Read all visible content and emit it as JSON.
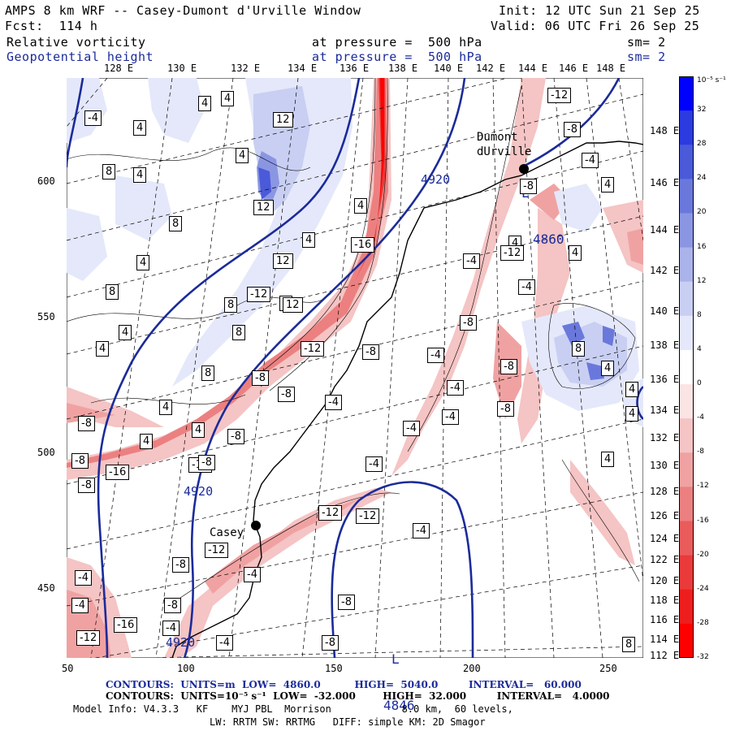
{
  "header": {
    "title": "AMPS 8 km WRF -- Casey-Dumont d'Urville Window",
    "init": "Init: 12 UTC Sun 21 Sep 25",
    "forecast": "Fcst:  114 h",
    "valid": "Valid: 06 UTC Fri 26 Sep 25",
    "field1": "Relative vorticity",
    "field1_level": "at pressure =  500 hPa",
    "field1_sm": "sm= 2",
    "field2": "Geopotential height",
    "field2_level": "at pressure =  500 hPa",
    "field2_sm": "sm= 2"
  },
  "lon_labels": [
    "128 E",
    "130 E",
    "132 E",
    "134 E",
    "136 E",
    "138 E",
    "140 E",
    "142 E",
    "144 E",
    "146 E",
    "148 E"
  ],
  "lat_labels": [
    "148 E",
    "146 E",
    "144 E",
    "142 E",
    "140 E",
    "138 E",
    "136 E",
    "134 E",
    "132 E",
    "130 E",
    "128 E",
    "126 E",
    "124 E",
    "122 E",
    "120 E",
    "118 E",
    "116 E",
    "114 E",
    "112 E"
  ],
  "y_axis": [
    "600",
    "550",
    "500",
    "450"
  ],
  "x_axis": [
    "50",
    "100",
    "150",
    "200",
    "250"
  ],
  "colorbar": {
    "unit": "10⁻⁵ s⁻¹",
    "labels": [
      "32",
      "28",
      "24",
      "20",
      "16",
      "12",
      "8",
      "4",
      "0",
      "-4",
      "-8",
      "-12",
      "-16",
      "-20",
      "-24",
      "-28",
      "-32"
    ],
    "colors": [
      "#0000ff",
      "#2c3be0",
      "#4a5ad8",
      "#6a78dc",
      "#8b96e3",
      "#aab3ea",
      "#c8cff2",
      "#e4e8fa",
      "#ffffff",
      "#fbe4e4",
      "#f5c4c4",
      "#f0a2a2",
      "#ec8080",
      "#ea5c5c",
      "#ea3a3a",
      "#ee1e1e",
      "#ff0000"
    ]
  },
  "stations": [
    {
      "name": "Dumont\ndUrville"
    },
    {
      "name": "Casey"
    }
  ],
  "highlow": [
    {
      "letter": "L",
      "value": "4860"
    },
    {
      "letter": "L",
      "value": "4846"
    }
  ],
  "height_labels": [
    "4920",
    "4920",
    "4920"
  ],
  "vort_labels": {
    "positive": [
      "4",
      "4",
      "4",
      "12",
      "8",
      "4",
      "4",
      "8",
      "4",
      "12",
      "4",
      "8",
      "8",
      "4",
      "4",
      "4",
      "8",
      "12",
      "4",
      "8",
      "4",
      "4",
      "4",
      "12",
      "4",
      "8",
      "4",
      "4",
      "4",
      "4",
      "8",
      "4",
      "4"
    ],
    "negative": [
      "-12",
      "-8",
      "-4",
      "-4",
      "-12",
      "-16",
      "-4",
      "-12",
      "-8",
      "-12",
      "-4",
      "-8",
      "-8",
      "-4",
      "-4",
      "-4",
      "-4",
      "-4",
      "-8",
      "-8",
      "-12",
      "-16",
      "-8",
      "-4",
      "-8",
      "-12",
      "-4",
      "-8",
      "-8",
      "-4",
      "-4",
      "-4",
      "-4",
      "-12",
      "-12",
      "-4",
      "-8",
      "-8",
      "-12",
      "-16",
      "-8",
      "-8",
      "-8",
      "-8",
      "-8"
    ]
  },
  "footer": {
    "line1": "CONTOURS:  UNITS=m  LOW=  4860.0          HIGH=  5040.0         INTERVAL=   60.000",
    "line2": "CONTOURS:  UNITS=10⁻⁵ s⁻¹  LOW=  -32.000        HIGH=  32.000         INTERVAL=   4.0000",
    "line3": "Model Info: V4.3.3   KF    MYJ PBL  Morrison            8.0 km,  60 levels,",
    "line4": "LW: RRTM SW: RRTMG   DIFF: simple KM: 2D Smagor"
  }
}
